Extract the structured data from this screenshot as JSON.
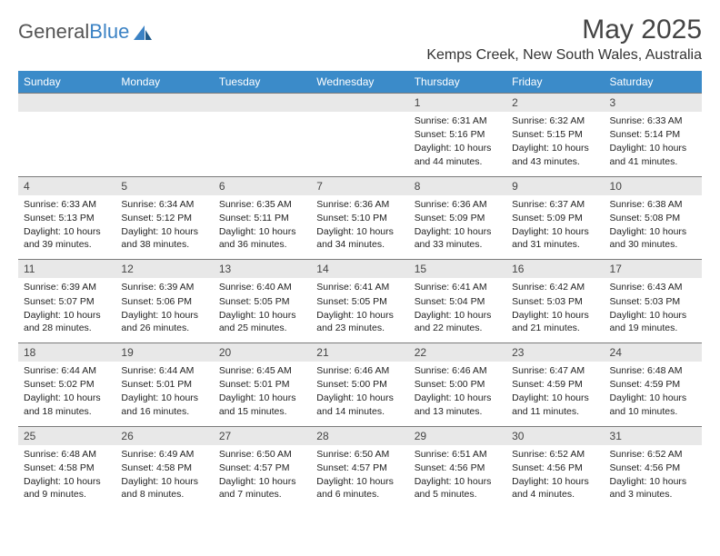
{
  "header": {
    "logo_general": "General",
    "logo_blue": "Blue",
    "title": "May 2025",
    "location": "Kemps Creek, New South Wales, Australia"
  },
  "colors": {
    "header_bg": "#3b8bc9",
    "header_text": "#ffffff",
    "daynum_bg": "#e8e8e8",
    "border": "#7a7a7a",
    "text": "#222222",
    "logo_blue": "#3b82c4"
  },
  "day_names": [
    "Sunday",
    "Monday",
    "Tuesday",
    "Wednesday",
    "Thursday",
    "Friday",
    "Saturday"
  ],
  "weeks": [
    {
      "days": [
        {
          "num": "",
          "sunrise": "",
          "sunset": "",
          "daylight": ""
        },
        {
          "num": "",
          "sunrise": "",
          "sunset": "",
          "daylight": ""
        },
        {
          "num": "",
          "sunrise": "",
          "sunset": "",
          "daylight": ""
        },
        {
          "num": "",
          "sunrise": "",
          "sunset": "",
          "daylight": ""
        },
        {
          "num": "1",
          "sunrise": "Sunrise: 6:31 AM",
          "sunset": "Sunset: 5:16 PM",
          "daylight": "Daylight: 10 hours and 44 minutes."
        },
        {
          "num": "2",
          "sunrise": "Sunrise: 6:32 AM",
          "sunset": "Sunset: 5:15 PM",
          "daylight": "Daylight: 10 hours and 43 minutes."
        },
        {
          "num": "3",
          "sunrise": "Sunrise: 6:33 AM",
          "sunset": "Sunset: 5:14 PM",
          "daylight": "Daylight: 10 hours and 41 minutes."
        }
      ]
    },
    {
      "days": [
        {
          "num": "4",
          "sunrise": "Sunrise: 6:33 AM",
          "sunset": "Sunset: 5:13 PM",
          "daylight": "Daylight: 10 hours and 39 minutes."
        },
        {
          "num": "5",
          "sunrise": "Sunrise: 6:34 AM",
          "sunset": "Sunset: 5:12 PM",
          "daylight": "Daylight: 10 hours and 38 minutes."
        },
        {
          "num": "6",
          "sunrise": "Sunrise: 6:35 AM",
          "sunset": "Sunset: 5:11 PM",
          "daylight": "Daylight: 10 hours and 36 minutes."
        },
        {
          "num": "7",
          "sunrise": "Sunrise: 6:36 AM",
          "sunset": "Sunset: 5:10 PM",
          "daylight": "Daylight: 10 hours and 34 minutes."
        },
        {
          "num": "8",
          "sunrise": "Sunrise: 6:36 AM",
          "sunset": "Sunset: 5:09 PM",
          "daylight": "Daylight: 10 hours and 33 minutes."
        },
        {
          "num": "9",
          "sunrise": "Sunrise: 6:37 AM",
          "sunset": "Sunset: 5:09 PM",
          "daylight": "Daylight: 10 hours and 31 minutes."
        },
        {
          "num": "10",
          "sunrise": "Sunrise: 6:38 AM",
          "sunset": "Sunset: 5:08 PM",
          "daylight": "Daylight: 10 hours and 30 minutes."
        }
      ]
    },
    {
      "days": [
        {
          "num": "11",
          "sunrise": "Sunrise: 6:39 AM",
          "sunset": "Sunset: 5:07 PM",
          "daylight": "Daylight: 10 hours and 28 minutes."
        },
        {
          "num": "12",
          "sunrise": "Sunrise: 6:39 AM",
          "sunset": "Sunset: 5:06 PM",
          "daylight": "Daylight: 10 hours and 26 minutes."
        },
        {
          "num": "13",
          "sunrise": "Sunrise: 6:40 AM",
          "sunset": "Sunset: 5:05 PM",
          "daylight": "Daylight: 10 hours and 25 minutes."
        },
        {
          "num": "14",
          "sunrise": "Sunrise: 6:41 AM",
          "sunset": "Sunset: 5:05 PM",
          "daylight": "Daylight: 10 hours and 23 minutes."
        },
        {
          "num": "15",
          "sunrise": "Sunrise: 6:41 AM",
          "sunset": "Sunset: 5:04 PM",
          "daylight": "Daylight: 10 hours and 22 minutes."
        },
        {
          "num": "16",
          "sunrise": "Sunrise: 6:42 AM",
          "sunset": "Sunset: 5:03 PM",
          "daylight": "Daylight: 10 hours and 21 minutes."
        },
        {
          "num": "17",
          "sunrise": "Sunrise: 6:43 AM",
          "sunset": "Sunset: 5:03 PM",
          "daylight": "Daylight: 10 hours and 19 minutes."
        }
      ]
    },
    {
      "days": [
        {
          "num": "18",
          "sunrise": "Sunrise: 6:44 AM",
          "sunset": "Sunset: 5:02 PM",
          "daylight": "Daylight: 10 hours and 18 minutes."
        },
        {
          "num": "19",
          "sunrise": "Sunrise: 6:44 AM",
          "sunset": "Sunset: 5:01 PM",
          "daylight": "Daylight: 10 hours and 16 minutes."
        },
        {
          "num": "20",
          "sunrise": "Sunrise: 6:45 AM",
          "sunset": "Sunset: 5:01 PM",
          "daylight": "Daylight: 10 hours and 15 minutes."
        },
        {
          "num": "21",
          "sunrise": "Sunrise: 6:46 AM",
          "sunset": "Sunset: 5:00 PM",
          "daylight": "Daylight: 10 hours and 14 minutes."
        },
        {
          "num": "22",
          "sunrise": "Sunrise: 6:46 AM",
          "sunset": "Sunset: 5:00 PM",
          "daylight": "Daylight: 10 hours and 13 minutes."
        },
        {
          "num": "23",
          "sunrise": "Sunrise: 6:47 AM",
          "sunset": "Sunset: 4:59 PM",
          "daylight": "Daylight: 10 hours and 11 minutes."
        },
        {
          "num": "24",
          "sunrise": "Sunrise: 6:48 AM",
          "sunset": "Sunset: 4:59 PM",
          "daylight": "Daylight: 10 hours and 10 minutes."
        }
      ]
    },
    {
      "days": [
        {
          "num": "25",
          "sunrise": "Sunrise: 6:48 AM",
          "sunset": "Sunset: 4:58 PM",
          "daylight": "Daylight: 10 hours and 9 minutes."
        },
        {
          "num": "26",
          "sunrise": "Sunrise: 6:49 AM",
          "sunset": "Sunset: 4:58 PM",
          "daylight": "Daylight: 10 hours and 8 minutes."
        },
        {
          "num": "27",
          "sunrise": "Sunrise: 6:50 AM",
          "sunset": "Sunset: 4:57 PM",
          "daylight": "Daylight: 10 hours and 7 minutes."
        },
        {
          "num": "28",
          "sunrise": "Sunrise: 6:50 AM",
          "sunset": "Sunset: 4:57 PM",
          "daylight": "Daylight: 10 hours and 6 minutes."
        },
        {
          "num": "29",
          "sunrise": "Sunrise: 6:51 AM",
          "sunset": "Sunset: 4:56 PM",
          "daylight": "Daylight: 10 hours and 5 minutes."
        },
        {
          "num": "30",
          "sunrise": "Sunrise: 6:52 AM",
          "sunset": "Sunset: 4:56 PM",
          "daylight": "Daylight: 10 hours and 4 minutes."
        },
        {
          "num": "31",
          "sunrise": "Sunrise: 6:52 AM",
          "sunset": "Sunset: 4:56 PM",
          "daylight": "Daylight: 10 hours and 3 minutes."
        }
      ]
    }
  ]
}
